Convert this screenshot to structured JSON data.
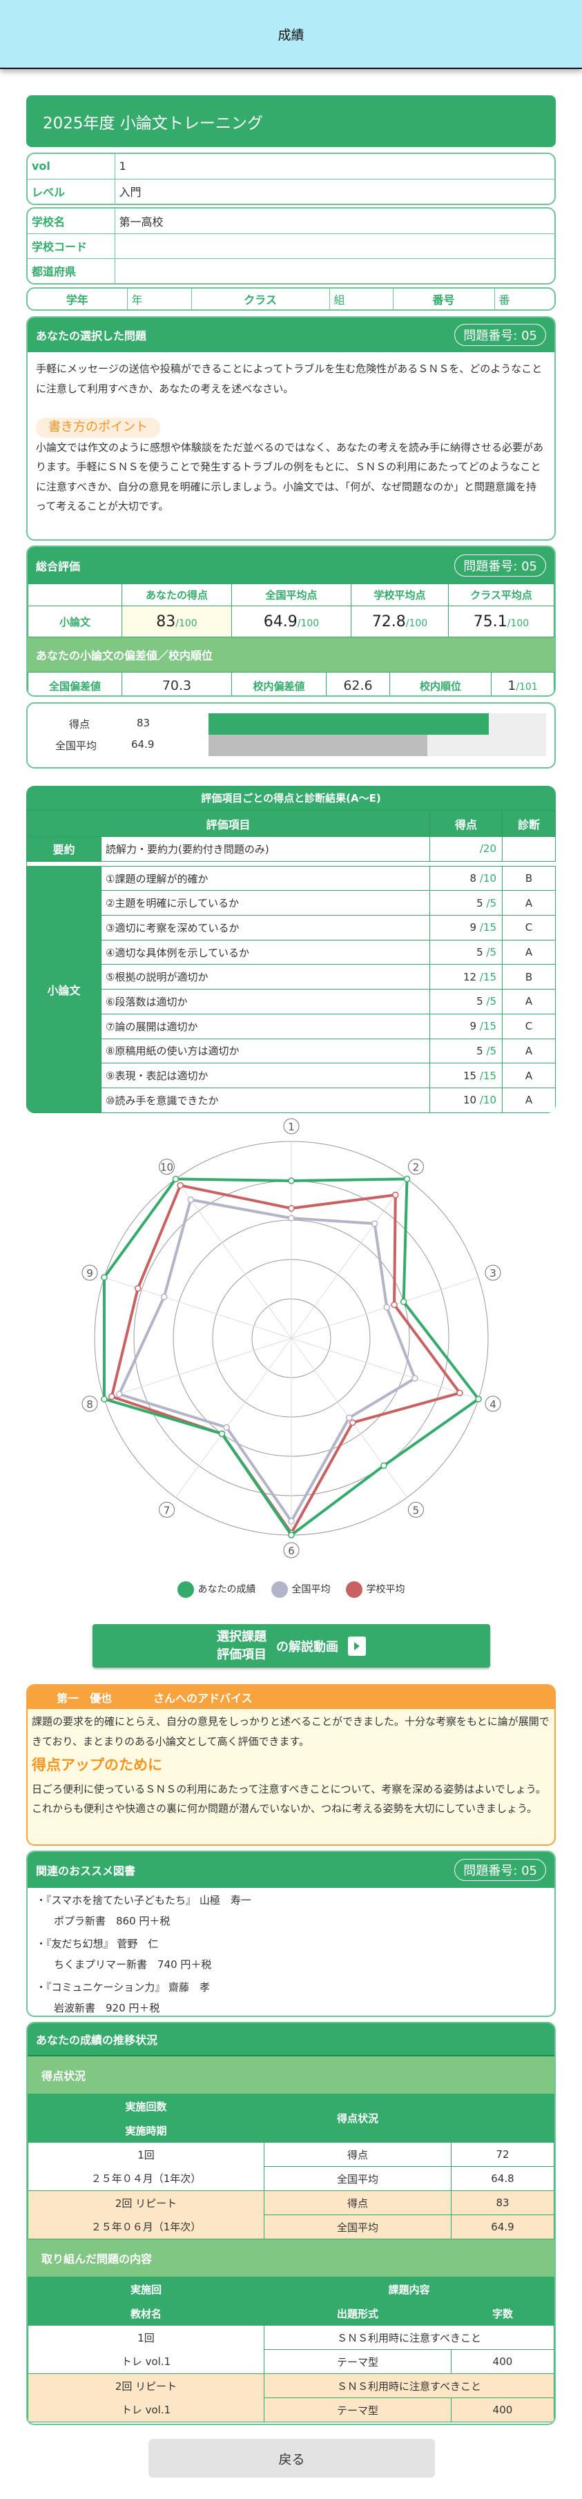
{
  "header": {
    "title": "成績"
  },
  "course": {
    "title": "2025年度 小論文トレーニング"
  },
  "info": {
    "vol_label": "vol",
    "vol": "1",
    "level_label": "レベル",
    "level": "入門",
    "school_label": "学校名",
    "school": "第一高校",
    "school_code_label": "学校コード",
    "school_code": "",
    "pref_label": "都道府県",
    "pref": "",
    "grade_label": "学年",
    "grade_unit": "年",
    "class_label": "クラス",
    "class_unit": "組",
    "number_label": "番号",
    "number_unit": "番"
  },
  "problem": {
    "title": "あなたの選択した問題",
    "badge": "問題番号: 05",
    "text": "手軽にメッセージの送信や投稿ができることによってトラブルを生む危険性があるＳＮＳを、どのようなことに注意して利用すべきか、あなたの考えを述べなさい。",
    "point_label": "書き方のポイント",
    "point_text": "小論文では作文のように感想や体験談をただ並べるのではなく、あなたの考えを読み手に納得させる必要があります。手軽にＳＮＳを使うことで発生するトラブルの例をもとに、ＳＮＳの利用にあたってどのようなことに注意すべきか、自分の意見を明確に示しましょう。小論文では、「何が、なぜ問題なのか」と問題意識を持って考えることが大切です。"
  },
  "total": {
    "title": "総合評価",
    "badge": "問題番号: 05",
    "cols": [
      "あなたの得点",
      "全国平均点",
      "学校平均点",
      "クラス平均点"
    ],
    "row_label": "小論文",
    "values": [
      "83",
      "64.9",
      "72.8",
      "75.1"
    ],
    "denom": "/100",
    "dev_title": "あなたの小論文の偏差値／校内順位",
    "nat_dev_label": "全国偏差値",
    "nat_dev": "70.3",
    "school_dev_label": "校内偏差値",
    "school_dev": "62.6",
    "rank_label": "校内順位",
    "rank": "1",
    "rank_denom": "/101"
  },
  "bars": {
    "score_label": "得点",
    "score": "83",
    "nat_label": "全国平均",
    "nat": "64.9",
    "max": 100,
    "score_color": "#35ab6b",
    "nat_color": "#bdbdbd"
  },
  "eval": {
    "title": "評価項目ごとの得点と診断結果(A～E)",
    "h_item": "評価項目",
    "h_score": "得点",
    "h_diag": "診断",
    "summary": {
      "cat": "要約",
      "item": "読解力・要約力(要約付き問題のみ)",
      "score": "",
      "max": "/20",
      "diag": ""
    },
    "cat": "小論文",
    "rows": [
      {
        "item": "①課題の理解が的確か",
        "score": "8",
        "max": "/10",
        "diag": "B"
      },
      {
        "item": "②主題を明確に示しているか",
        "score": "5",
        "max": "/5",
        "diag": "A"
      },
      {
        "item": "③適切に考察を深めているか",
        "score": "9",
        "max": "/15",
        "diag": "C"
      },
      {
        "item": "④適切な具体例を示しているか",
        "score": "5",
        "max": "/5",
        "diag": "A"
      },
      {
        "item": "⑤根拠の説明が適切か",
        "score": "12",
        "max": "/15",
        "diag": "B"
      },
      {
        "item": "⑥段落数は適切か",
        "score": "5",
        "max": "/5",
        "diag": "A"
      },
      {
        "item": "⑦論の展開は適切か",
        "score": "9",
        "max": "/15",
        "diag": "C"
      },
      {
        "item": "⑧原稿用紙の使い方は適切か",
        "score": "5",
        "max": "/5",
        "diag": "A"
      },
      {
        "item": "⑨表現・表記は適切か",
        "score": "15",
        "max": "/15",
        "diag": "A"
      },
      {
        "item": "⑩読み手を意識できたか",
        "score": "10",
        "max": "/10",
        "diag": "A"
      }
    ]
  },
  "chart_data": {
    "type": "radar",
    "axes": [
      "①",
      "②",
      "③",
      "④",
      "⑤",
      "⑥",
      "⑦",
      "⑧",
      "⑨",
      "⑩"
    ],
    "range": [
      0,
      100
    ],
    "rings": 5,
    "legend": "bottom",
    "series": [
      {
        "name": "あなたの成績",
        "color": "#35ab6b",
        "values": [
          80,
          100,
          60,
          100,
          80,
          100,
          60,
          100,
          100,
          100
        ]
      },
      {
        "name": "全国平均",
        "color": "#b2b4c8",
        "values": [
          61,
          72,
          51,
          66,
          50,
          93,
          56,
          92,
          68,
          87
        ]
      },
      {
        "name": "学校平均",
        "color": "#c86262",
        "values": [
          66,
          90,
          55,
          90,
          53,
          99,
          60,
          96,
          82,
          96
        ]
      }
    ]
  },
  "video": {
    "line1": "選択課題",
    "line2": "評価項目",
    "suffix": "の解説動画"
  },
  "advice": {
    "name": "第一　優也",
    "title": "さんへのアドバイス",
    "text": "課題の要求を的確にとらえ、自分の意見をしっかりと述べることができました。十分な考察をもとに論が展開できており、まとまりのある小論文として高く評価できます。",
    "up_title": "得点アップのために",
    "up_text": "日ごろ便利に使っているＳＮＳの利用にあたって注意すべきことについて、考察を深める姿勢はよいでしょう。これからも便利さや快適さの裏に何か問題が潜んでいないか、つねに考える姿勢を大切にしていきましょう。"
  },
  "books": {
    "title": "関連のおススメ図書",
    "badge": "問題番号: 05",
    "items": [
      {
        "line1": "・『スマホを捨てたい子どもたち』 山極　寿一",
        "line2": "ポプラ新書　860 円＋税"
      },
      {
        "line1": "・『友だち幻想』 菅野　仁",
        "line2": "ちくまプリマー新書　740 円＋税"
      },
      {
        "line1": "・『コミュニケーション力』 齋藤　孝",
        "line2": "岩波新書　920 円＋税"
      }
    ]
  },
  "history": {
    "title": "あなたの成績の推移状況",
    "score_section": "得点状況",
    "h_count": "実施回数",
    "h_period": "実施時期",
    "h_status": "得点状況",
    "rows": [
      {
        "count": "1回",
        "period": "２５年０４月（1年次）",
        "score_label": "得点",
        "score": "72",
        "nat_label": "全国平均",
        "nat": "64.8"
      },
      {
        "count": "2回 リピート",
        "period": "２５年０６月（1年次）",
        "score_label": "得点",
        "score": "83",
        "nat_label": "全国平均",
        "nat": "64.9"
      }
    ],
    "content_section": "取り組んだ問題の内容",
    "h_round": "実施回",
    "h_material": "教材名",
    "h_content": "課題内容",
    "h_format": "出題形式",
    "h_chars": "字数",
    "content_rows": [
      {
        "round": "1回",
        "material": "トレ vol.1",
        "topic": "ＳＮＳ利用時に注意すべきこと",
        "format": "テーマ型",
        "chars": "400"
      },
      {
        "round": "2回 リピート",
        "material": "トレ vol.1",
        "topic": "ＳＮＳ利用時に注意すべきこと",
        "format": "テーマ型",
        "chars": "400"
      }
    ]
  },
  "back_label": "戻る"
}
